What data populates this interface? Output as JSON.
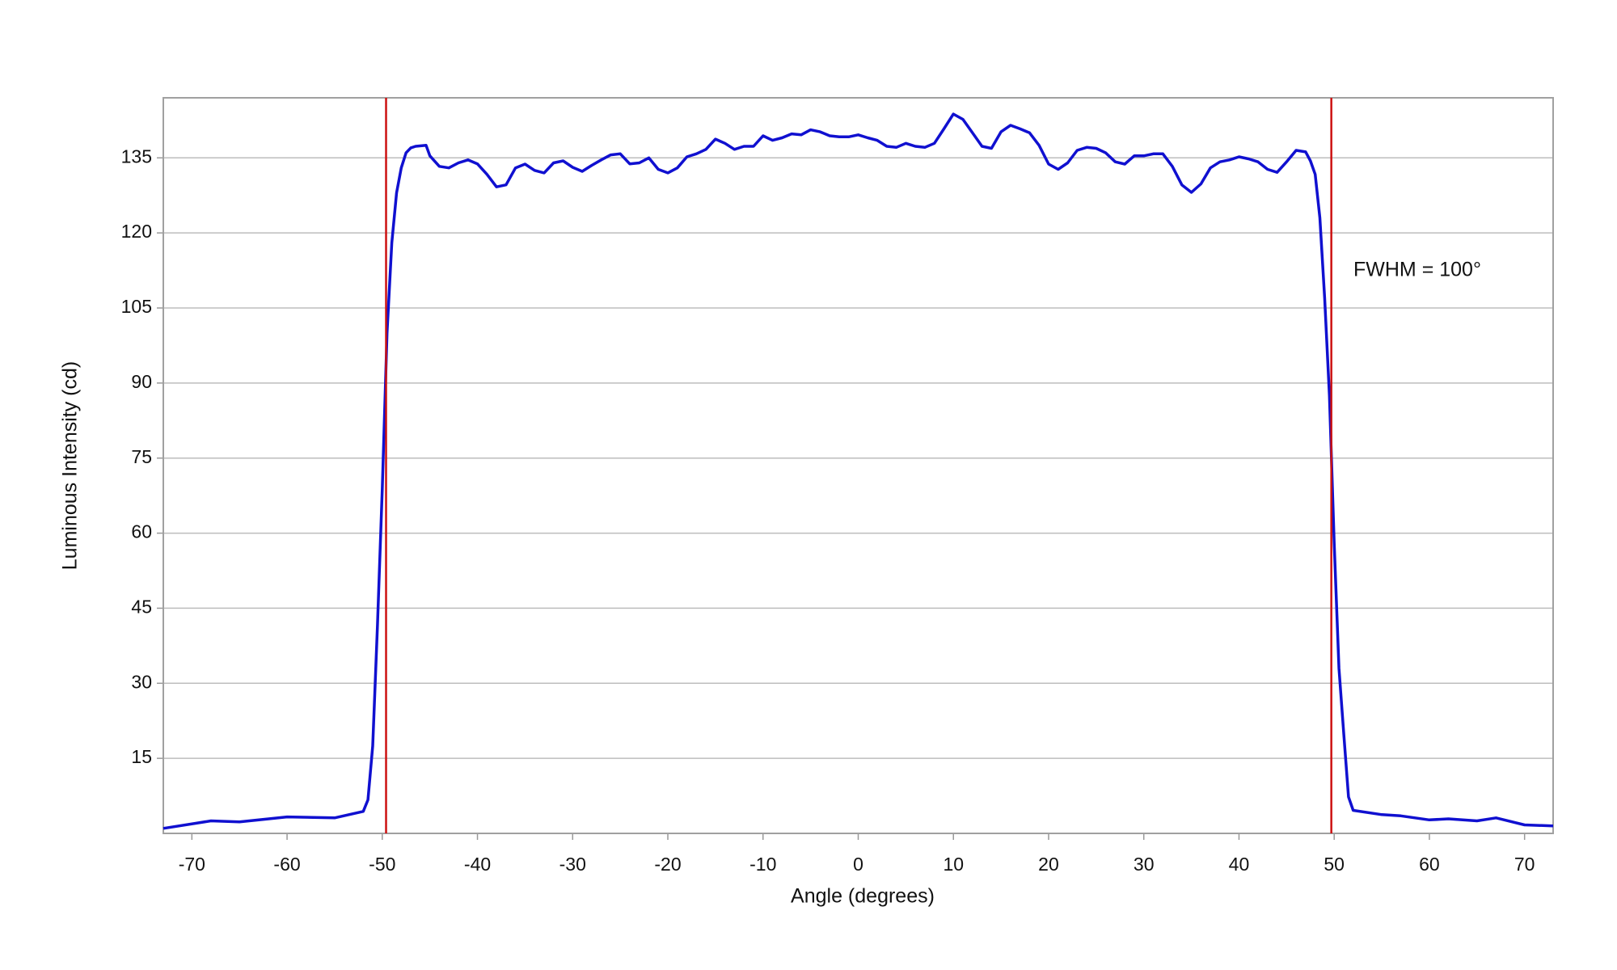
{
  "chart_data": {
    "type": "line",
    "x_label": "Angle (degrees)",
    "y_label": "Luminous Intensity (cd)",
    "annotation": "FWHM = 100°",
    "xlim": [
      -73,
      73
    ],
    "ylim": [
      0,
      147
    ],
    "xticks": [
      -70,
      -60,
      -50,
      -40,
      -30,
      -20,
      -10,
      0,
      10,
      20,
      30,
      40,
      50,
      60,
      70
    ],
    "yticks": [
      15,
      30,
      45,
      60,
      75,
      90,
      105,
      120,
      135
    ],
    "grid": true,
    "vlines": [
      -49.6,
      49.7
    ],
    "vline_color": "#cc1111",
    "series": [
      {
        "color": "#1010d0",
        "x": [
          -73,
          -68,
          -65,
          -60,
          -55,
          -52,
          -51.5,
          -51,
          -50.5,
          -50,
          -49.5,
          -49,
          -48.5,
          -48,
          -47.5,
          -47,
          -46.5,
          -45.4,
          -45,
          -44,
          -43,
          -42,
          -41,
          -40,
          -39,
          -38,
          -37,
          -36,
          -35,
          -34,
          -33,
          -32,
          -31,
          -30,
          -29,
          -28,
          -27,
          -26,
          -25,
          -24,
          -23,
          -22,
          -21,
          -20,
          -19,
          -18,
          -17,
          -16,
          -15,
          -14,
          -13,
          -12,
          -11,
          -10,
          -9,
          -8,
          -7,
          -6,
          -5,
          -4,
          -3,
          -2,
          -1,
          0,
          1,
          2,
          3,
          4,
          5,
          6,
          7,
          8,
          9,
          10,
          11,
          12,
          13,
          14,
          15,
          16,
          17,
          18,
          19,
          20,
          21,
          22,
          23,
          24,
          25,
          26,
          27,
          28,
          29,
          30,
          31,
          32,
          33,
          34,
          35,
          36,
          37,
          38,
          39,
          40,
          41,
          42,
          43,
          44,
          45,
          46,
          47,
          47.5,
          48,
          48.5,
          49,
          49.5,
          50,
          50.5,
          51,
          51.5,
          52,
          55,
          57,
          60,
          62,
          65,
          67,
          70,
          73
        ],
        "values": [
          1,
          2.5,
          2.3,
          3.3,
          3.1,
          4.4,
          6.7,
          17.5,
          41.7,
          68.75,
          100,
          118,
          128,
          133,
          136,
          137,
          137.3,
          137.5,
          135.4,
          133.3,
          133,
          134,
          134.6,
          133.8,
          131.7,
          129.2,
          129.6,
          133,
          133.75,
          132.5,
          132,
          134,
          134.4,
          133.1,
          132.3,
          133.5,
          134.6,
          135.6,
          135.8,
          133.8,
          134,
          135,
          132.7,
          132,
          133,
          135.2,
          135.8,
          136.7,
          138.75,
          137.9,
          136.7,
          137.3,
          137.3,
          139.4,
          138.5,
          139,
          139.8,
          139.6,
          140.6,
          140.2,
          139.4,
          139.2,
          139.2,
          139.6,
          139,
          138.5,
          137.3,
          137.1,
          137.9,
          137.3,
          137.1,
          137.9,
          140.8,
          143.75,
          142.7,
          140,
          137.3,
          136.9,
          140.2,
          141.5,
          140.8,
          140,
          137.5,
          133.75,
          132.7,
          134,
          136.5,
          137.1,
          136.9,
          136,
          134.2,
          133.75,
          135.4,
          135.4,
          135.8,
          135.8,
          133.3,
          129.6,
          128.1,
          129.8,
          133,
          134.2,
          134.6,
          135.2,
          134.8,
          134.2,
          132.7,
          132.1,
          134.2,
          136.5,
          136.2,
          134.4,
          131.7,
          123,
          107,
          87.5,
          58,
          33,
          20,
          7.3,
          4.6,
          3.75,
          3.5,
          2.7,
          2.9,
          2.5,
          3.1,
          1.7,
          1.5
        ]
      }
    ]
  }
}
